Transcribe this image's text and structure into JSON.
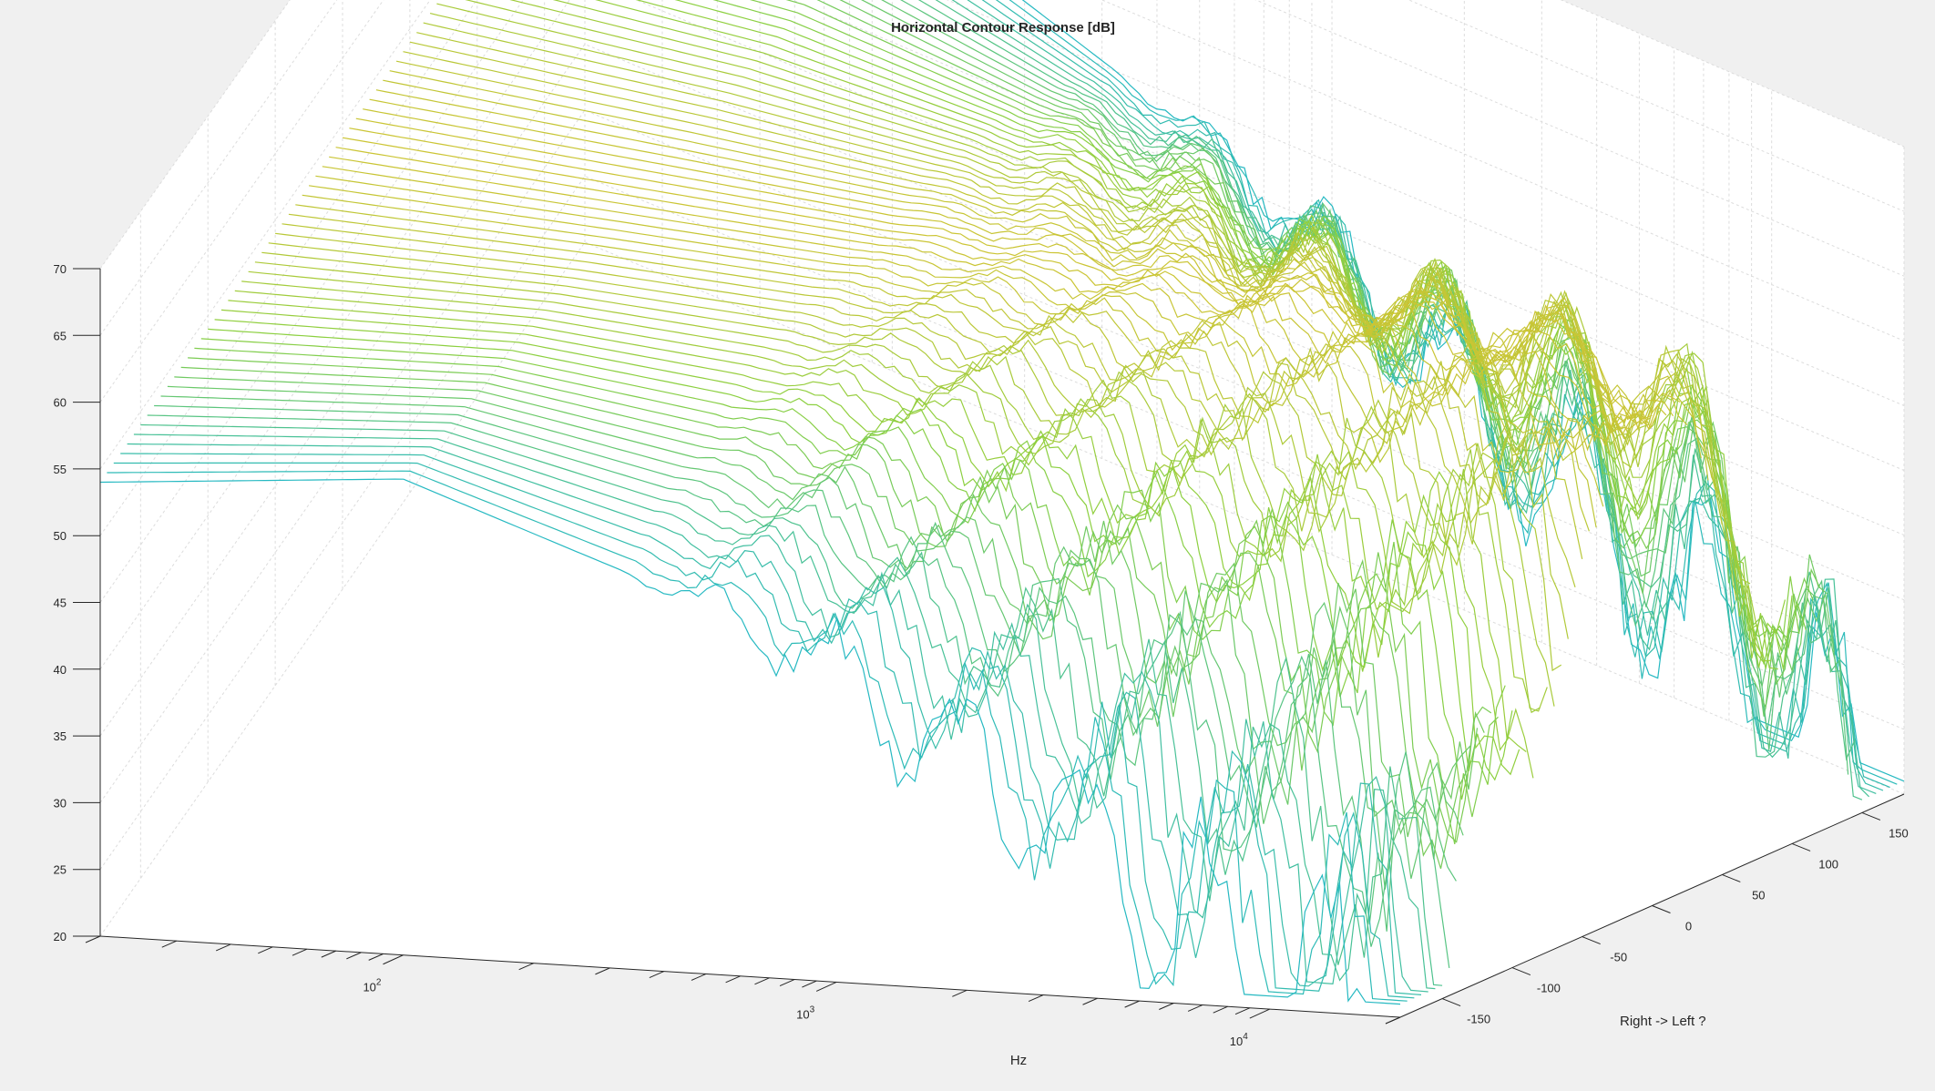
{
  "chart_data": {
    "type": "waterfall-3d",
    "title": "Horizontal Contour Response [dB]",
    "xlabel": "Hz",
    "ylabel": "Right -> Left ?",
    "zlabel": "",
    "x_scale": "log",
    "x_range": [
      20,
      20000
    ],
    "y_range": [
      -180,
      180
    ],
    "y_step": 5,
    "z_range": [
      20,
      70
    ],
    "x_ticks": [
      {
        "value": 100,
        "base": "10",
        "exp": "2"
      },
      {
        "value": 1000,
        "base": "10",
        "exp": "3"
      },
      {
        "value": 10000,
        "base": "10",
        "exp": "4"
      }
    ],
    "y_ticks": [
      "-150",
      "-100",
      "-50",
      "0",
      "50",
      "100",
      "150"
    ],
    "y_tick_values": [
      -150,
      -100,
      -50,
      0,
      50,
      100,
      150
    ],
    "z_ticks": [
      "20",
      "25",
      "30",
      "35",
      "40",
      "45",
      "50",
      "55",
      "60",
      "65",
      "70"
    ],
    "z_tick_values": [
      20,
      25,
      30,
      35,
      40,
      45,
      50,
      55,
      60,
      65,
      70
    ],
    "grid": true,
    "colormap": {
      "low": "#3e26a8",
      "mid_low": "#2f7ff0",
      "mid": "#20b8c9",
      "mid_high": "#8cd040",
      "high": "#e6c030"
    },
    "model": {
      "low_freq_level_db": 54,
      "low_freq_level_at_edge_db": 53,
      "peak_level_on_axis_db": 61,
      "off_axis_rolloff_start_hz": 700,
      "lowest_dip_db": 27
    },
    "sample_profile_on_axis": [
      {
        "hz": 20,
        "db": 54.0
      },
      {
        "hz": 100,
        "db": 54.5
      },
      {
        "hz": 300,
        "db": 56.5
      },
      {
        "hz": 1000,
        "db": 58.0
      },
      {
        "hz": 3000,
        "db": 59.0
      },
      {
        "hz": 8000,
        "db": 60.5
      },
      {
        "hz": 12000,
        "db": 59.5
      },
      {
        "hz": 20000,
        "db": 44.0
      }
    ],
    "sample_profile_at_-180": [
      {
        "hz": 20,
        "db": 53.0
      },
      {
        "hz": 100,
        "db": 51.0
      },
      {
        "hz": 300,
        "db": 46.0
      },
      {
        "hz": 1000,
        "db": 38.0
      },
      {
        "hz": 3000,
        "db": 33.0
      },
      {
        "hz": 8000,
        "db": 30.0
      },
      {
        "hz": 20000,
        "db": 26.0
      }
    ]
  }
}
